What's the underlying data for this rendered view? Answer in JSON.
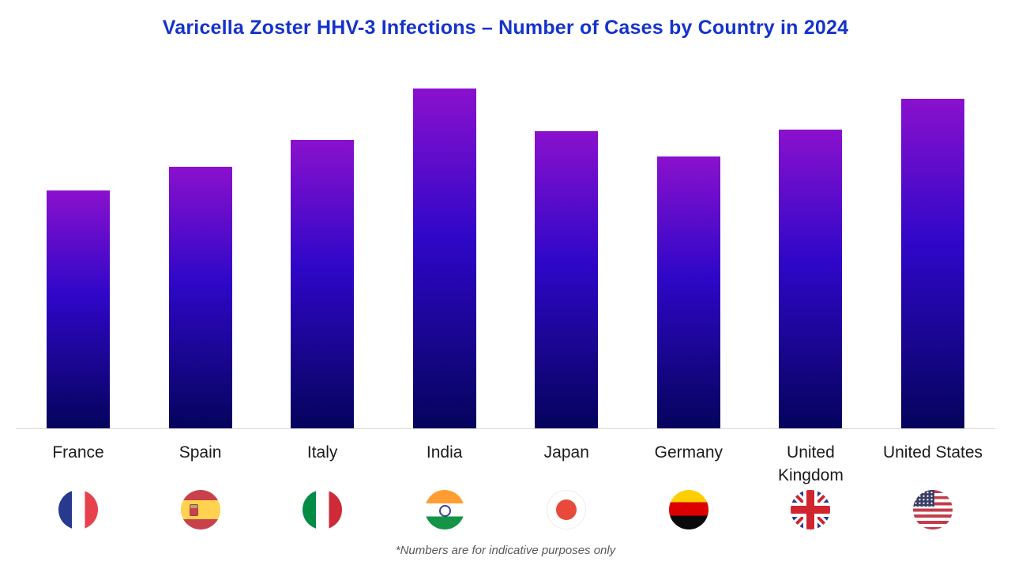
{
  "page": {
    "title": "Varicella Zoster HHV-3 Infections – Number of Cases by Country in 2024",
    "footnote": "*Numbers are for indicative purposes only"
  },
  "theme": {
    "title_color": "#1533cb",
    "bar_gradient_top": "#8a11cd",
    "bar_gradient_mid": "#2f07c8",
    "bar_gradient_bottom": "#05045c",
    "axis_line_color": "#d8d8d8",
    "category_label_color": "#1b1b1b",
    "footnote_color": "#595959",
    "background": "#ffffff"
  },
  "chart_data": {
    "type": "bar",
    "title": "Varicella Zoster HHV-3 Infections – Number of Cases by Country in 2024",
    "categories": [
      "France",
      "Spain",
      "Italy",
      "India",
      "Japan",
      "Germany",
      "United Kingdom",
      "United States"
    ],
    "values": [
      70,
      77,
      85,
      100,
      87.5,
      80,
      88,
      97
    ],
    "labels_display": [
      "France",
      "Spain",
      "Italy",
      "India",
      "Japan",
      "Germany",
      "United\nKingdom",
      "United States"
    ],
    "flags": [
      "france",
      "spain",
      "italy",
      "india",
      "japan",
      "germany",
      "uk",
      "usa"
    ],
    "value_note": "No numeric y-axis shown; values are relative bar heights with the tallest bar (India) = 100. Footnote states numbers are indicative only.",
    "xlabel": "",
    "ylabel": "",
    "ylim": [
      0,
      100
    ],
    "grid": false,
    "legend": false,
    "orientation": "vertical",
    "x_axis_line": true
  }
}
